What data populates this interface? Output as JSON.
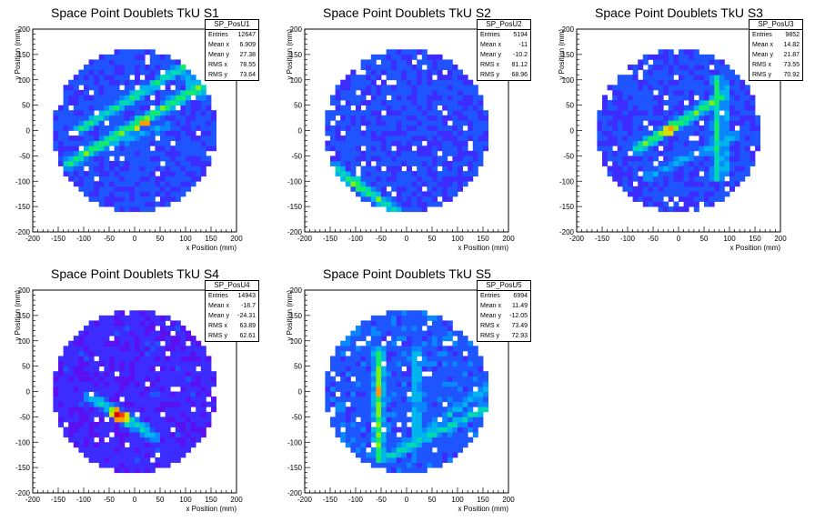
{
  "palette": [
    "#5a10f0",
    "#3c2cff",
    "#1f55ff",
    "#0a86ff",
    "#00b4ee",
    "#00d7b4",
    "#12ea6a",
    "#7cf212",
    "#d8e000",
    "#ff9c00",
    "#ff3a00",
    "#d80000"
  ],
  "chart_data": [
    {
      "type": "heatmap",
      "title": "Space Point Doublets TkU S1",
      "xlabel": "x Position (mm)",
      "ylabel": "y Position (mm)",
      "xlim": [
        -200,
        200
      ],
      "ylim": [
        -200,
        200
      ],
      "xticks": [
        -200,
        -150,
        -100,
        -50,
        0,
        50,
        100,
        150,
        200
      ],
      "yticks": [
        -200,
        -150,
        -100,
        -50,
        0,
        50,
        100,
        150,
        200
      ],
      "detector_radius": 160,
      "bin_size": 10,
      "background_level": 0.12,
      "stats": {
        "name": "SP_PosU1",
        "rows": [
          [
            "Entries",
            "12647"
          ],
          [
            "Mean x",
            "6.909"
          ],
          [
            "Mean y",
            "27.38"
          ],
          [
            "RMS x",
            "78.55"
          ],
          [
            "RMS y",
            "73.64"
          ]
        ]
      },
      "tracks": [
        {
          "from": [
            -130,
            -65
          ],
          "to": [
            150,
            100
          ],
          "level": 0.55,
          "peak_at": [
            20,
            5
          ],
          "peak": 0.9
        },
        {
          "from": [
            -110,
            0
          ],
          "to": [
            160,
            165
          ],
          "level": 0.45
        },
        {
          "from": [
            90,
            120
          ],
          "to": [
            130,
            70
          ],
          "level": 0.4
        },
        {
          "from": [
            -80,
            -40
          ],
          "to": [
            60,
            10
          ],
          "level": 0.3
        }
      ]
    },
    {
      "type": "heatmap",
      "title": "Space Point Doublets TkU S2",
      "xlabel": "x Position (mm)",
      "ylabel": "y Position (mm)",
      "xlim": [
        -200,
        200
      ],
      "ylim": [
        -200,
        200
      ],
      "xticks": [
        -200,
        -150,
        -100,
        -50,
        0,
        50,
        100,
        150,
        200
      ],
      "yticks": [
        -200,
        -150,
        -100,
        -50,
        0,
        50,
        100,
        150,
        200
      ],
      "detector_radius": 160,
      "bin_size": 10,
      "background_level": 0.12,
      "stats": {
        "name": "SP_PosU2",
        "rows": [
          [
            "Entries",
            "5194"
          ],
          [
            "Mean x",
            "-11"
          ],
          [
            "Mean y",
            "-10.2"
          ],
          [
            "RMS x",
            "81.12"
          ],
          [
            "RMS y",
            "68.96"
          ]
        ]
      },
      "tracks": [
        {
          "from": [
            -140,
            -75
          ],
          "to": [
            -20,
            -160
          ],
          "level": 0.5,
          "peak_at": [
            -110,
            -115
          ],
          "peak": 0.75
        }
      ]
    },
    {
      "type": "heatmap",
      "title": "Space Point Doublets TkU S3",
      "xlabel": "x Position (mm)",
      "ylabel": "y Position (mm)",
      "xlim": [
        -200,
        200
      ],
      "ylim": [
        -200,
        200
      ],
      "xticks": [
        -200,
        -150,
        -100,
        -50,
        0,
        50,
        100,
        150,
        200
      ],
      "yticks": [
        -200,
        -150,
        -100,
        -50,
        0,
        50,
        100,
        150,
        200
      ],
      "detector_radius": 160,
      "bin_size": 10,
      "background_level": 0.12,
      "stats": {
        "name": "SP_PosU3",
        "rows": [
          [
            "Entries",
            "9852"
          ],
          [
            "Mean x",
            "14.82"
          ],
          [
            "Mean y",
            "21.87"
          ],
          [
            "RMS x",
            "73.55"
          ],
          [
            "RMS y",
            "70.92"
          ]
        ]
      },
      "tracks": [
        {
          "from": [
            -80,
            -35
          ],
          "to": [
            90,
            70
          ],
          "level": 0.55,
          "peak_at": [
            -20,
            0
          ],
          "peak": 0.85
        },
        {
          "from": [
            75,
            -90
          ],
          "to": [
            75,
            100
          ],
          "level": 0.45
        },
        {
          "from": [
            90,
            -80
          ],
          "to": [
            90,
            100
          ],
          "level": 0.35
        },
        {
          "from": [
            -60,
            -90
          ],
          "to": [
            110,
            -10
          ],
          "level": 0.35
        }
      ]
    },
    {
      "type": "heatmap",
      "title": "Space Point Doublets TkU S4",
      "xlabel": "x Position (mm)",
      "ylabel": "y Position (mm)",
      "xlim": [
        -200,
        200
      ],
      "ylim": [
        -200,
        200
      ],
      "xticks": [
        -200,
        -150,
        -100,
        -50,
        0,
        50,
        100,
        150,
        200
      ],
      "yticks": [
        -200,
        -150,
        -100,
        -50,
        0,
        50,
        100,
        150,
        200
      ],
      "detector_radius": 160,
      "bin_size": 10,
      "background_level": 0.05,
      "stats": {
        "name": "SP_PosU4",
        "rows": [
          [
            "Entries",
            "14943"
          ],
          [
            "Mean x",
            "-18.7"
          ],
          [
            "Mean y",
            "-24.31"
          ],
          [
            "RMS x",
            "63.89"
          ],
          [
            "RMS y",
            "62.61"
          ]
        ]
      },
      "tracks": [
        {
          "from": [
            -90,
            -10
          ],
          "to": [
            40,
            -90
          ],
          "level": 0.35,
          "peak_at": [
            -30,
            -45
          ],
          "peak": 1.0
        },
        {
          "from": [
            -70,
            -20
          ],
          "to": [
            20,
            -75
          ],
          "level": 0.45
        }
      ]
    },
    {
      "type": "heatmap",
      "title": "Space Point Doublets TkU S5",
      "xlabel": "x Position (mm)",
      "ylabel": "y Position (mm)",
      "xlim": [
        -200,
        200
      ],
      "ylim": [
        -200,
        200
      ],
      "xticks": [
        -200,
        -150,
        -100,
        -50,
        0,
        50,
        100,
        150,
        200
      ],
      "yticks": [
        -200,
        -150,
        -100,
        -50,
        0,
        50,
        100,
        150,
        200
      ],
      "detector_radius": 160,
      "bin_size": 10,
      "background_level": 0.15,
      "stats": {
        "name": "SP_PosU5",
        "rows": [
          [
            "Entries",
            "6994"
          ],
          [
            "Mean x",
            "11.49"
          ],
          [
            "Mean y",
            "-12.05"
          ],
          [
            "RMS x",
            "73.49"
          ],
          [
            "RMS y",
            "72.93"
          ]
        ]
      },
      "tracks": [
        {
          "from": [
            -55,
            -130
          ],
          "to": [
            -55,
            80
          ],
          "level": 0.55,
          "peak_at": [
            -55,
            0
          ],
          "peak": 0.8
        },
        {
          "from": [
            20,
            -100
          ],
          "to": [
            20,
            80
          ],
          "level": 0.4
        },
        {
          "from": [
            -40,
            -130
          ],
          "to": [
            160,
            -30
          ],
          "level": 0.45
        },
        {
          "from": [
            -20,
            -120
          ],
          "to": [
            160,
            10
          ],
          "level": 0.35
        }
      ]
    }
  ]
}
